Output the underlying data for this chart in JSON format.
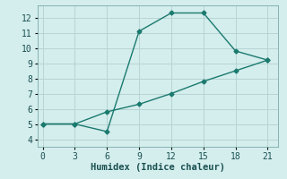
{
  "line1_x": [
    0,
    3,
    6,
    9,
    12,
    15,
    18,
    21
  ],
  "line1_y": [
    5.0,
    5.0,
    4.5,
    11.1,
    12.3,
    12.3,
    9.8,
    9.2
  ],
  "line2_x": [
    0,
    3,
    6,
    9,
    12,
    15,
    18,
    21
  ],
  "line2_y": [
    5.0,
    5.0,
    5.8,
    6.3,
    7.0,
    7.8,
    8.5,
    9.2
  ],
  "line_color": "#1a7a6e",
  "background_color": "#d4eded",
  "grid_color": "#b8d4d4",
  "xlabel": "Humidex (Indice chaleur)",
  "xlim": [
    -0.5,
    22
  ],
  "ylim": [
    3.5,
    12.8
  ],
  "xticks": [
    0,
    3,
    6,
    9,
    12,
    15,
    18,
    21
  ],
  "yticks": [
    4,
    5,
    6,
    7,
    8,
    9,
    10,
    11,
    12
  ],
  "marker": "D",
  "marker_size": 2.5,
  "line_width": 1.0,
  "xlabel_fontsize": 7.5,
  "tick_fontsize": 7
}
